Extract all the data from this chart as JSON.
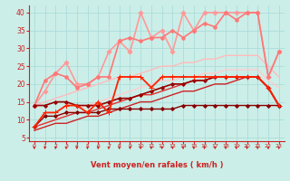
{
  "xlabel": "Vent moyen/en rafales ( km/h )",
  "xlim": [
    -0.5,
    23.5
  ],
  "ylim": [
    4,
    42
  ],
  "yticks": [
    5,
    10,
    15,
    20,
    25,
    30,
    35,
    40
  ],
  "xticks": [
    0,
    1,
    2,
    3,
    4,
    5,
    6,
    7,
    8,
    9,
    10,
    11,
    12,
    13,
    14,
    15,
    16,
    17,
    18,
    19,
    20,
    21,
    22,
    23
  ],
  "bg_color": "#cceee8",
  "grid_color": "#aaddda",
  "lines": [
    {
      "x": [
        0,
        1,
        2,
        3,
        4,
        5,
        6,
        7,
        8,
        9,
        10,
        11,
        12,
        13,
        14,
        15,
        16,
        17,
        18,
        19,
        20,
        21,
        22,
        23
      ],
      "y": [
        8,
        11,
        11,
        12,
        12,
        12,
        12,
        13,
        13,
        13,
        13,
        13,
        13,
        13,
        14,
        14,
        14,
        14,
        14,
        14,
        14,
        14,
        14,
        14
      ],
      "color": "#880000",
      "lw": 1.0,
      "marker": "D",
      "ms": 2.0,
      "zorder": 4
    },
    {
      "x": [
        0,
        1,
        2,
        3,
        4,
        5,
        6,
        7,
        8,
        9,
        10,
        11,
        12,
        13,
        14,
        15,
        16,
        17,
        18,
        19,
        20,
        21,
        22,
        23
      ],
      "y": [
        7,
        8,
        9,
        9,
        10,
        11,
        11,
        12,
        13,
        14,
        15,
        15,
        16,
        17,
        18,
        18,
        19,
        20,
        20,
        21,
        22,
        22,
        19,
        14
      ],
      "color": "#cc2222",
      "lw": 1.0,
      "marker": null,
      "ms": 0,
      "zorder": 3
    },
    {
      "x": [
        0,
        1,
        2,
        3,
        4,
        5,
        6,
        7,
        8,
        9,
        10,
        11,
        12,
        13,
        14,
        15,
        16,
        17,
        18,
        19,
        20,
        21,
        22,
        23
      ],
      "y": [
        8,
        9,
        10,
        11,
        12,
        12,
        13,
        14,
        15,
        16,
        17,
        17,
        18,
        19,
        20,
        21,
        21,
        22,
        22,
        22,
        22,
        22,
        19,
        14
      ],
      "color": "#dd3333",
      "lw": 1.0,
      "marker": null,
      "ms": 0,
      "zorder": 3
    },
    {
      "x": [
        0,
        1,
        2,
        3,
        4,
        5,
        6,
        7,
        8,
        9,
        10,
        11,
        12,
        13,
        14,
        15,
        16,
        17,
        18,
        19,
        20,
        21,
        22,
        23
      ],
      "y": [
        8,
        12,
        12,
        14,
        14,
        12,
        15,
        12,
        22,
        22,
        22,
        19,
        22,
        22,
        22,
        22,
        22,
        22,
        22,
        22,
        22,
        22,
        19,
        14
      ],
      "color": "#ff2200",
      "lw": 1.3,
      "marker": "+",
      "ms": 4,
      "zorder": 5
    },
    {
      "x": [
        0,
        1,
        2,
        3,
        4,
        5,
        6,
        7,
        8,
        9,
        10,
        11,
        12,
        13,
        14,
        15,
        16,
        17,
        18,
        19,
        20,
        21,
        22,
        23
      ],
      "y": [
        14,
        14,
        15,
        15,
        14,
        14,
        14,
        15,
        16,
        16,
        17,
        18,
        19,
        20,
        20,
        21,
        21,
        22,
        22,
        22,
        22,
        22,
        19,
        14
      ],
      "color": "#990000",
      "lw": 1.2,
      "marker": "D",
      "ms": 2.0,
      "zorder": 4
    },
    {
      "x": [
        0,
        1,
        2,
        3,
        4,
        5,
        6,
        7,
        8,
        9,
        10,
        11,
        12,
        13,
        14,
        15,
        16,
        17,
        18,
        19,
        20,
        21,
        22,
        23
      ],
      "y": [
        14,
        18,
        23,
        26,
        20,
        20,
        22,
        29,
        32,
        29,
        40,
        33,
        35,
        29,
        40,
        35,
        40,
        40,
        40,
        40,
        40,
        40,
        22,
        29
      ],
      "color": "#ff9999",
      "lw": 1.2,
      "marker": "D",
      "ms": 2.5,
      "zorder": 3
    },
    {
      "x": [
        0,
        1,
        2,
        3,
        4,
        5,
        6,
        7,
        8,
        9,
        10,
        11,
        12,
        13,
        14,
        15,
        16,
        17,
        18,
        19,
        20,
        21,
        22,
        23
      ],
      "y": [
        14,
        15,
        16,
        17,
        18,
        19,
        20,
        21,
        22,
        22,
        23,
        24,
        25,
        25,
        26,
        26,
        27,
        27,
        28,
        28,
        28,
        28,
        25,
        22
      ],
      "color": "#ffbbbb",
      "lw": 1.0,
      "marker": null,
      "ms": 0,
      "zorder": 2
    },
    {
      "x": [
        0,
        1,
        2,
        3,
        4,
        5,
        6,
        7,
        8,
        9,
        10,
        11,
        12,
        13,
        14,
        15,
        16,
        17,
        18,
        19,
        20,
        21,
        22,
        23
      ],
      "y": [
        8,
        9,
        10,
        12,
        13,
        14,
        15,
        16,
        17,
        18,
        19,
        20,
        21,
        21,
        22,
        22,
        23,
        23,
        24,
        24,
        24,
        24,
        21,
        19
      ],
      "color": "#ffcccc",
      "lw": 1.0,
      "marker": null,
      "ms": 0,
      "zorder": 2
    },
    {
      "x": [
        0,
        1,
        2,
        3,
        4,
        5,
        6,
        7,
        8,
        9,
        10,
        11,
        12,
        13,
        14,
        15,
        16,
        17,
        18,
        19,
        20,
        21,
        22,
        23
      ],
      "y": [
        14,
        21,
        23,
        22,
        19,
        20,
        22,
        22,
        32,
        33,
        32,
        33,
        33,
        35,
        33,
        35,
        37,
        36,
        40,
        38,
        40,
        40,
        22,
        29
      ],
      "color": "#ff7777",
      "lw": 1.2,
      "marker": "o",
      "ms": 2.5,
      "zorder": 3
    }
  ],
  "arrow_color": "#cc2222",
  "axis_color": "#cc2222",
  "tick_color": "#cc2222",
  "label_color": "#cc2222"
}
